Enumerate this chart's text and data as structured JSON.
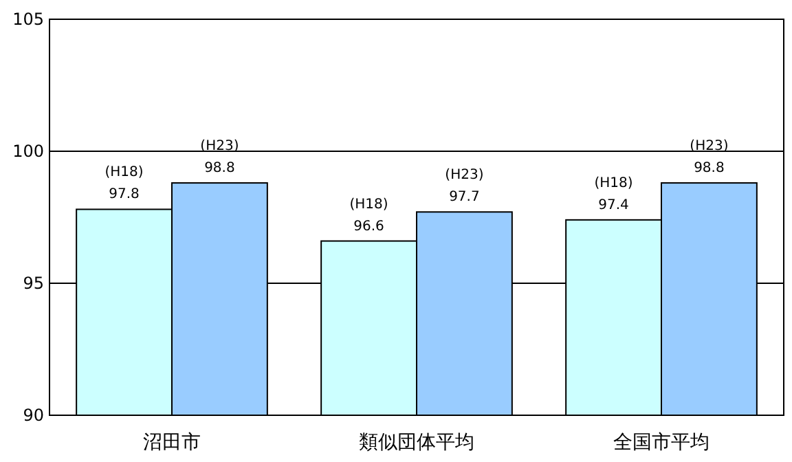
{
  "chart_data": {
    "type": "bar",
    "categories": [
      "沼田市",
      "類似団体平均",
      "全国市平均"
    ],
    "series": [
      {
        "name": "(H18)",
        "color": "#ccffff",
        "values": [
          97.8,
          96.6,
          97.4
        ]
      },
      {
        "name": "(H23)",
        "color": "#99ccff",
        "values": [
          98.8,
          97.7,
          98.8
        ]
      }
    ],
    "ylim": [
      90,
      105
    ],
    "yticks": [
      90,
      95,
      100,
      105
    ],
    "grid": "y",
    "data_labels": true
  }
}
